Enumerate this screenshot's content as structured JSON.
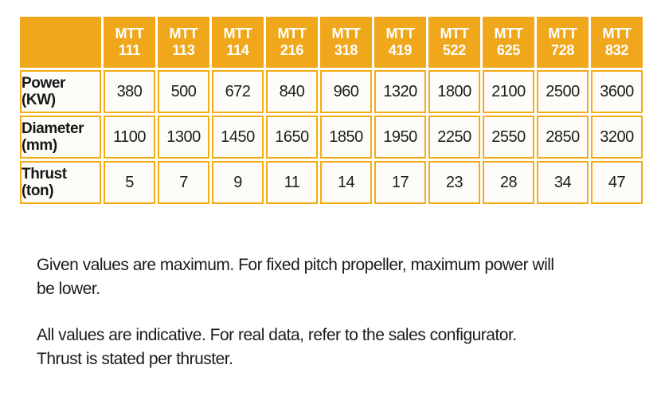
{
  "colors": {
    "header_bg": "#f0a71c",
    "cell_border": "#f3ac14",
    "cell_bg": "#fdfcf8",
    "header_text": "#ffffff",
    "body_text": "#1d1d1d"
  },
  "table": {
    "columns": [
      {
        "line1": "MTT",
        "line2": "111"
      },
      {
        "line1": "MTT",
        "line2": "113"
      },
      {
        "line1": "MTT",
        "line2": "114"
      },
      {
        "line1": "MTT",
        "line2": "216"
      },
      {
        "line1": "MTT",
        "line2": "318"
      },
      {
        "line1": "MTT",
        "line2": "419"
      },
      {
        "line1": "MTT",
        "line2": "522"
      },
      {
        "line1": "MTT",
        "line2": "625"
      },
      {
        "line1": "MTT",
        "line2": "728"
      },
      {
        "line1": "MTT",
        "line2": "832"
      }
    ],
    "rows": [
      {
        "label_line1": "Power",
        "label_line2": "(KW)",
        "values": [
          "380",
          "500",
          "672",
          "840",
          "960",
          "1320",
          "1800",
          "2100",
          "2500",
          "3600"
        ]
      },
      {
        "label_line1": "Diameter",
        "label_line2": "(mm)",
        "values": [
          "1100",
          "1300",
          "1450",
          "1650",
          "1850",
          "1950",
          "2250",
          "2550",
          "2850",
          "3200"
        ]
      },
      {
        "label_line1": "Thrust",
        "label_line2": "(ton)",
        "values": [
          "5",
          "7",
          "9",
          "11",
          "14",
          "17",
          "23",
          "28",
          "34",
          "47"
        ]
      }
    ]
  },
  "notes": [
    {
      "line1": "Given values are maximum. For fixed pitch propeller, maximum power will",
      "line2": "be lower."
    },
    {
      "line1": "All values are indicative. For real data, refer to the sales configurator.",
      "line2": "Thrust is stated per thruster."
    }
  ]
}
